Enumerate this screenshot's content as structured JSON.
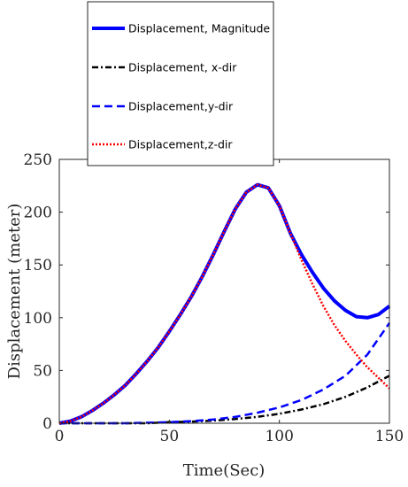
{
  "chart_data": {
    "type": "line",
    "title": "",
    "xlabel": "Time(Sec)",
    "ylabel": "Displacement (meter)",
    "xlim": [
      0,
      150
    ],
    "ylim": [
      0,
      250
    ],
    "xticks": [
      0,
      50,
      100,
      150
    ],
    "yticks": [
      0,
      50,
      100,
      150,
      200,
      250
    ],
    "grid": false,
    "legend_position": "top-left, above plot",
    "series": [
      {
        "name": "Displacement, Magnitude",
        "color": "#0000ff",
        "style": "solid",
        "x": [
          0,
          5,
          10,
          15,
          20,
          25,
          30,
          35,
          40,
          45,
          50,
          55,
          60,
          65,
          70,
          75,
          80,
          85,
          90,
          95,
          100,
          105,
          110,
          115,
          120,
          125,
          130,
          135,
          140,
          145,
          150
        ],
        "y": [
          0,
          2,
          6,
          12,
          19,
          27,
          36,
          47,
          59,
          72,
          87,
          103,
          120,
          139,
          160,
          182,
          203,
          219,
          226,
          223,
          206,
          180,
          160,
          143,
          128,
          116,
          107,
          101,
          100,
          103,
          111
        ]
      },
      {
        "name": "Displacement, x-dir",
        "color": "#000000",
        "style": "dashdot",
        "x": [
          0,
          10,
          20,
          30,
          40,
          50,
          60,
          70,
          80,
          90,
          100,
          110,
          120,
          130,
          140,
          150
        ],
        "y": [
          0,
          0,
          0,
          0,
          0,
          1,
          1.5,
          2.5,
          4,
          6,
          9,
          13,
          18,
          25,
          34,
          45
        ]
      },
      {
        "name": "Displacement,y-dir",
        "color": "#0000ff",
        "style": "dashed",
        "x": [
          0,
          10,
          20,
          30,
          40,
          50,
          60,
          70,
          80,
          90,
          100,
          110,
          120,
          130,
          140,
          150
        ],
        "y": [
          0,
          0,
          0,
          0,
          0.5,
          1,
          2,
          3.5,
          6,
          10,
          15,
          22,
          32,
          45,
          65,
          95
        ]
      },
      {
        "name": "Displacement,z-dir",
        "color": "#ff0000",
        "style": "dotted",
        "x": [
          0,
          5,
          10,
          15,
          20,
          25,
          30,
          35,
          40,
          45,
          50,
          55,
          60,
          65,
          70,
          75,
          80,
          85,
          90,
          95,
          100,
          105,
          110,
          115,
          120,
          125,
          130,
          135,
          140,
          145,
          150
        ],
        "y": [
          0,
          2,
          6,
          12,
          19,
          27,
          36,
          47,
          59,
          72,
          87,
          103,
          120,
          139,
          160,
          182,
          203,
          219,
          226,
          223,
          206,
          180,
          155,
          132,
          111,
          93,
          78,
          65,
          53,
          43,
          33
        ]
      }
    ]
  }
}
